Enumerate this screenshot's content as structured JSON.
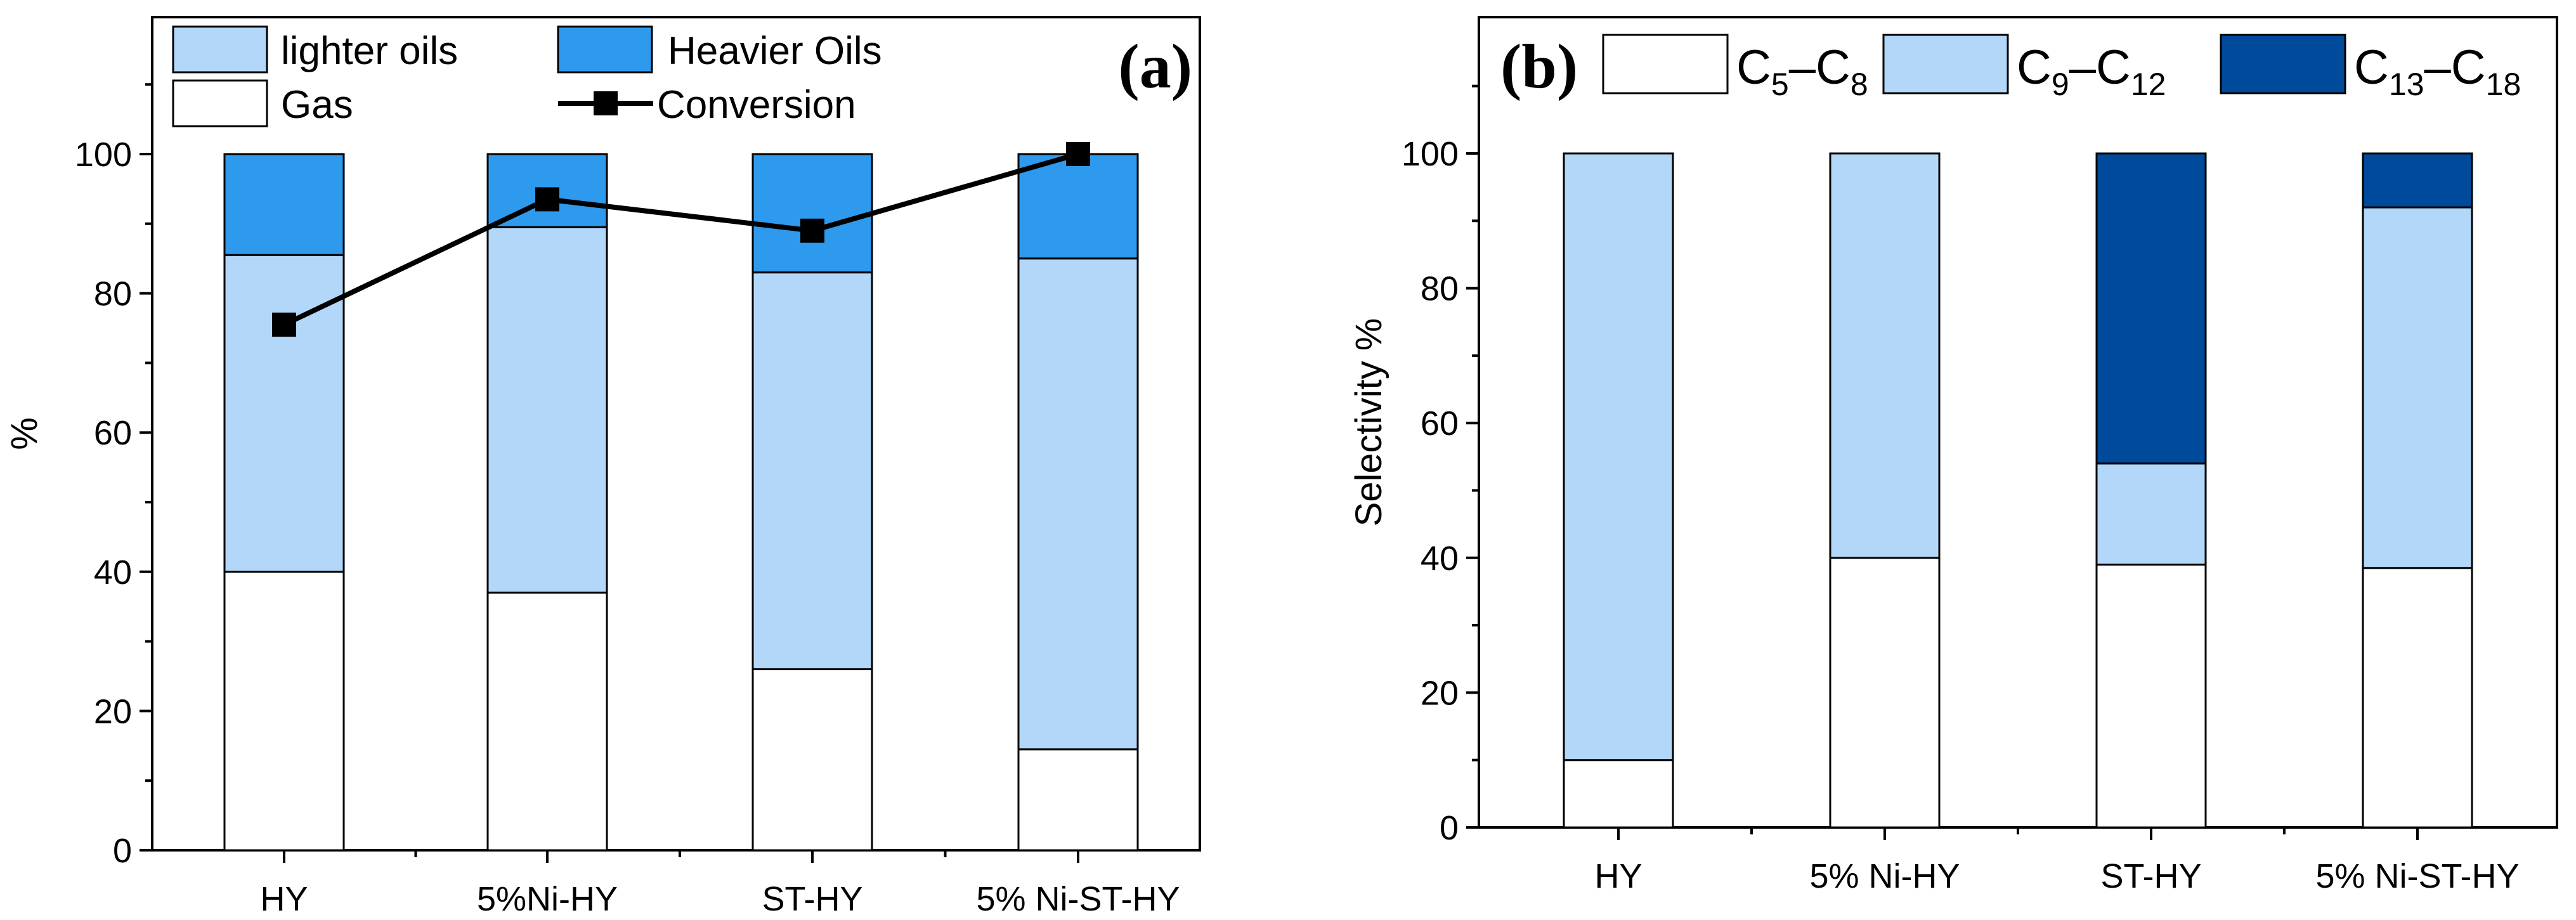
{
  "colors": {
    "lighter": "#B3D7F9",
    "heavier": "#2E9AED",
    "gas": "#FFFFFF",
    "c5c8": "#FFFFFF",
    "c9c12": "#B3D7F9",
    "c13c18": "#004A9B",
    "line": "#000000"
  },
  "chart_data": [
    {
      "type": "bar",
      "panel_label": "(a)",
      "stacked": true,
      "categories": [
        "HY",
        "5%Ni-HY",
        "ST-HY",
        "5% Ni-ST-HY"
      ],
      "series": [
        {
          "name": "Gas",
          "key": "gas",
          "values": [
            40,
            37,
            26,
            14.5
          ]
        },
        {
          "name": "lighter oils",
          "key": "lighter",
          "values": [
            45.5,
            52.5,
            57,
            70.5
          ]
        },
        {
          "name": "Heavier Oils",
          "key": "heavier",
          "values": [
            14.5,
            10.5,
            17,
            15
          ]
        }
      ],
      "line_series": {
        "name": "Conversion",
        "values": [
          75.5,
          93.5,
          89,
          100
        ]
      },
      "legend": {
        "lighter": "lighter oils",
        "heavier": "Heavier Oils",
        "gas": "Gas",
        "conversion": "Conversion"
      },
      "xlabel": "",
      "ylabel": "%",
      "ylim": [
        0,
        116
      ],
      "yticks": [
        0,
        20,
        40,
        60,
        80,
        100
      ]
    },
    {
      "type": "bar",
      "panel_label": "(b)",
      "stacked": true,
      "categories": [
        "HY",
        "5% Ni-HY",
        "ST-HY",
        "5% Ni-ST-HY"
      ],
      "series": [
        {
          "name": "C5–C8",
          "key": "c5c8",
          "values": [
            10,
            40,
            39,
            38.5
          ]
        },
        {
          "name": "C9–C12",
          "key": "c9c12",
          "values": [
            90,
            60,
            15,
            53.5
          ]
        },
        {
          "name": "C13–C18",
          "key": "c13c18",
          "values": [
            0,
            0,
            46,
            8
          ]
        }
      ],
      "legend": {
        "c5c8": {
          "base": "C",
          "sub1": "5",
          "dash": "–C",
          "sub2": "8"
        },
        "c9c12": {
          "base": "C",
          "sub1": "9",
          "dash": "–C",
          "sub2": "12"
        },
        "c13c18": {
          "base": "C",
          "sub1": "13",
          "dash": "–C",
          "sub2": "18"
        }
      },
      "xlabel": "",
      "ylabel": "Selectivity %",
      "ylim": [
        0,
        116
      ],
      "yticks": [
        0,
        20,
        40,
        60,
        80,
        100
      ]
    }
  ]
}
